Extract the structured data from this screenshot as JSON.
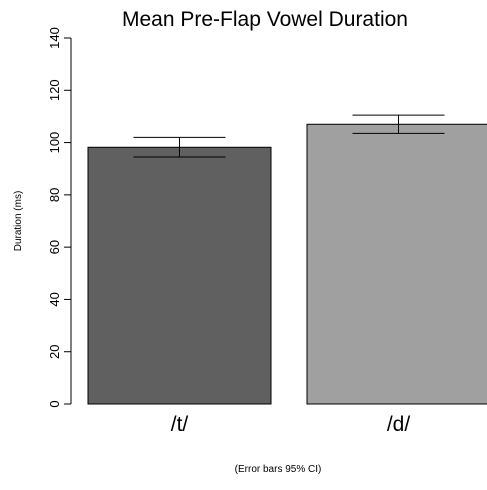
{
  "chart_data": {
    "type": "bar",
    "title": "Mean Pre-Flap Vowel Duration",
    "ylabel": "Duration (ms)",
    "caption": "(Error bars 95% CI)",
    "categories": [
      "/t/",
      "/d/"
    ],
    "values": [
      98.2,
      107.0
    ],
    "error_low": [
      94.5,
      103.5
    ],
    "error_high": [
      102.0,
      110.5
    ],
    "colors": [
      "#606060",
      "#a0a0a0"
    ],
    "ylim": [
      0,
      140
    ],
    "yticks": [
      0,
      20,
      40,
      60,
      80,
      100,
      120,
      140
    ],
    "ytick_labels": [
      "0",
      "20",
      "40",
      "60",
      "80",
      "100",
      "120",
      "140"
    ],
    "grid": false,
    "legend": "none"
  }
}
